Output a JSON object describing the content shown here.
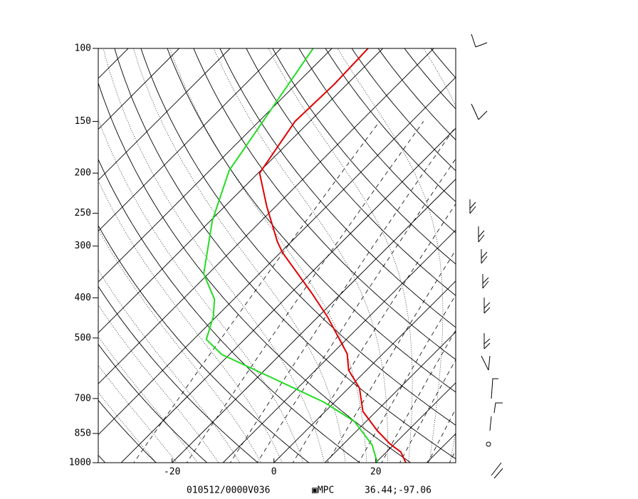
{
  "chart_data": {
    "type": "skewt",
    "xlim": [
      -34.5,
      35.7
    ],
    "xticks": [
      -20,
      0,
      20
    ],
    "ylim": [
      1000,
      100
    ],
    "yticks": [
      100,
      150,
      200,
      250,
      300,
      400,
      500,
      700,
      850,
      1000
    ],
    "log_y": true,
    "series": [
      {
        "name": "Temperature",
        "color": "#e00000",
        "pressure": [
          1000,
          942,
          902,
          837,
          752,
          660,
          598,
          546,
          444,
          387,
          311,
          293,
          241,
          200,
          150,
          122,
          100
        ],
        "values": [
          25.9,
          22.8,
          19.2,
          14.0,
          7.4,
          2.1,
          -3.5,
          -7.0,
          -18.2,
          -26.3,
          -39.6,
          -42.7,
          -51.7,
          -59.7,
          -62.9,
          -62.5,
          -62.9
        ]
      },
      {
        "name": "Dewpoint",
        "color": "#22dd22",
        "pressure": [
          1000,
          906,
          795,
          714,
          639,
          548,
          504,
          444,
          403,
          350,
          260,
          197,
          100
        ],
        "values": [
          20.3,
          15.8,
          7.7,
          -2.1,
          -14.4,
          -31.5,
          -37.5,
          -40.6,
          -43.8,
          -50.9,
          -59.7,
          -66.2,
          -73.7
        ]
      }
    ],
    "valid_time": "010512/0000V036",
    "source": "▣MPC",
    "location": "36.44;-97.06"
  }
}
